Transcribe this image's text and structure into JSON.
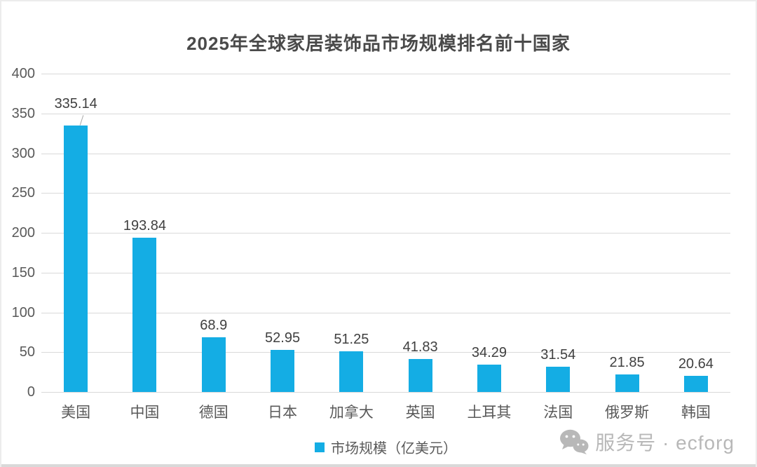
{
  "page": {
    "background": "#ffffff",
    "border_color": "#ececec",
    "bottom_strip_color": "#d9d9d9"
  },
  "chart_data": {
    "type": "bar",
    "title": "2025年全球家居装饰品市场规模排名前十国家",
    "categories": [
      "美国",
      "中国",
      "德国",
      "日本",
      "加拿大",
      "英国",
      "土耳其",
      "法国",
      "俄罗斯",
      "韩国"
    ],
    "values": [
      335.14,
      193.84,
      68.9,
      52.95,
      51.25,
      41.83,
      34.29,
      31.54,
      21.85,
      20.64
    ],
    "data_labels": [
      "335.14",
      "193.84",
      "68.9",
      "52.95",
      "51.25",
      "41.83",
      "34.29",
      "31.54",
      "21.85",
      "20.64"
    ],
    "series_name": "市场规模（亿美元）",
    "legend_label": "市场规模（亿美元）",
    "legend_position": "bottom",
    "xlabel": "",
    "ylabel": "",
    "ylim": [
      0,
      400
    ],
    "yticks": [
      0,
      50,
      100,
      150,
      200,
      250,
      300,
      350,
      400
    ],
    "grid": true,
    "bar_color": "#14ade4",
    "gridline_color": "#d9d9d9",
    "tick_label_color": "#595959",
    "data_label_color": "#404040",
    "title_color": "#4a4a4a",
    "first_label_has_leader_line": true
  },
  "watermark": {
    "icon": "wechat-icon",
    "text": "服务号 · ecforg",
    "color": "#b8b8b8"
  }
}
